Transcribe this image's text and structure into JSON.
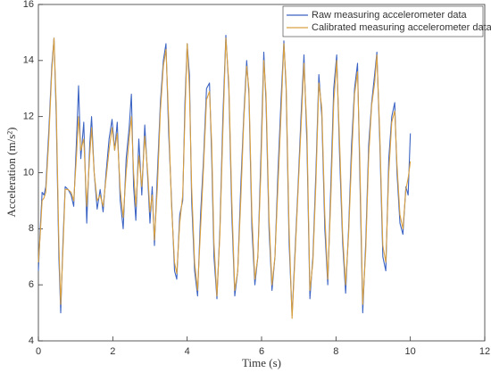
{
  "chart_data": {
    "type": "line",
    "xlabel": "Time (s)",
    "ylabel": "Acceleration (m/s²)",
    "xlim": [
      0,
      12
    ],
    "xticks": [
      0,
      2,
      4,
      6,
      8,
      10,
      12
    ],
    "ylim": [
      4,
      16
    ],
    "yticks": [
      4,
      6,
      8,
      10,
      12,
      14,
      16
    ],
    "legend": "top-right",
    "x": [
      0.0,
      0.05,
      0.1,
      0.15,
      0.2,
      0.28,
      0.36,
      0.42,
      0.48,
      0.55,
      0.6,
      0.66,
      0.72,
      0.8,
      0.88,
      0.95,
      1.02,
      1.08,
      1.14,
      1.22,
      1.3,
      1.38,
      1.43,
      1.5,
      1.58,
      1.66,
      1.74,
      1.82,
      1.9,
      1.98,
      2.05,
      2.12,
      2.2,
      2.28,
      2.36,
      2.44,
      2.5,
      2.56,
      2.62,
      2.7,
      2.78,
      2.86,
      2.94,
      3.0,
      3.06,
      3.12,
      3.2,
      3.28,
      3.36,
      3.43,
      3.5,
      3.58,
      3.66,
      3.72,
      3.8,
      3.88,
      3.94,
      4.0,
      4.06,
      4.12,
      4.2,
      4.28,
      4.36,
      4.44,
      4.52,
      4.6,
      4.66,
      4.72,
      4.8,
      4.88,
      4.96,
      5.04,
      5.12,
      5.2,
      5.28,
      5.36,
      5.44,
      5.52,
      5.6,
      5.66,
      5.74,
      5.82,
      5.9,
      5.98,
      6.06,
      6.12,
      6.2,
      6.28,
      6.36,
      6.44,
      6.52,
      6.6,
      6.66,
      6.74,
      6.82,
      6.9,
      6.98,
      7.06,
      7.14,
      7.22,
      7.3,
      7.38,
      7.46,
      7.54,
      7.62,
      7.7,
      7.78,
      7.86,
      7.94,
      8.02,
      8.1,
      8.18,
      8.26,
      8.34,
      8.42,
      8.5,
      8.58,
      8.64,
      8.72,
      8.8,
      8.88,
      8.96,
      9.04,
      9.1,
      9.18,
      9.26,
      9.34,
      9.42,
      9.5,
      9.58,
      9.64,
      9.72,
      9.8,
      9.88,
      9.94,
      10.0
    ],
    "series": [
      {
        "name": "Raw measuring accelerometer data",
        "color": "#3c64c4",
        "values": [
          6.5,
          8.0,
          9.3,
          9.2,
          9.5,
          11.5,
          13.8,
          14.8,
          12.0,
          7.0,
          5.0,
          7.5,
          9.5,
          9.4,
          9.2,
          8.8,
          11.0,
          13.1,
          10.5,
          11.8,
          8.2,
          11.0,
          12.0,
          10.0,
          8.7,
          9.4,
          8.6,
          10.0,
          11.2,
          11.9,
          10.8,
          11.8,
          9.0,
          8.0,
          10.5,
          11.6,
          12.8,
          9.5,
          8.3,
          11.2,
          9.2,
          11.7,
          9.8,
          8.2,
          9.5,
          7.4,
          10.0,
          12.5,
          14.0,
          14.6,
          11.5,
          9.0,
          6.5,
          6.2,
          8.5,
          9.0,
          12.5,
          14.6,
          13.5,
          9.0,
          6.5,
          5.6,
          8.5,
          10.5,
          13.0,
          13.2,
          10.5,
          7.0,
          5.5,
          8.0,
          12.0,
          14.9,
          13.0,
          8.5,
          5.6,
          6.5,
          9.5,
          12.0,
          14.0,
          12.8,
          8.0,
          6.0,
          7.0,
          10.5,
          14.3,
          12.5,
          8.0,
          5.8,
          7.0,
          10.0,
          12.5,
          14.7,
          13.0,
          7.5,
          4.9,
          7.2,
          9.5,
          12.0,
          14.2,
          11.0,
          5.5,
          7.0,
          10.0,
          13.5,
          12.0,
          8.0,
          6.0,
          9.5,
          13.0,
          14.2,
          10.5,
          7.5,
          5.7,
          8.0,
          11.0,
          13.0,
          13.9,
          10.0,
          5.0,
          7.5,
          11.0,
          12.5,
          13.5,
          14.3,
          11.0,
          7.0,
          6.5,
          10.5,
          12.0,
          12.5,
          10.0,
          8.2,
          7.8,
          9.5,
          9.2,
          11.4
        ]
      },
      {
        "name": "Calibrated measuring accelerometer data",
        "color": "#d9a040",
        "values": [
          6.8,
          7.8,
          9.0,
          9.1,
          9.3,
          11.2,
          13.6,
          14.8,
          12.4,
          7.5,
          5.3,
          7.2,
          9.4,
          9.4,
          9.3,
          9.0,
          10.5,
          12.0,
          10.8,
          11.2,
          8.8,
          10.6,
          11.6,
          10.0,
          9.0,
          9.2,
          8.8,
          9.8,
          10.8,
          11.6,
          10.8,
          11.4,
          9.4,
          8.4,
          10.0,
          11.2,
          12.0,
          10.0,
          8.8,
          10.6,
          9.5,
          11.3,
          10.0,
          8.6,
          9.2,
          7.6,
          9.5,
          12.2,
          13.8,
          14.4,
          12.0,
          8.8,
          6.8,
          6.4,
          8.2,
          9.2,
          12.0,
          14.6,
          13.0,
          9.5,
          6.8,
          5.8,
          8.0,
          10.2,
          12.6,
          12.9,
          11.0,
          7.5,
          5.6,
          7.8,
          11.5,
          14.8,
          13.2,
          9.0,
          5.8,
          6.5,
          9.0,
          11.8,
          13.8,
          13.0,
          8.5,
          6.2,
          7.0,
          10.0,
          14.0,
          12.8,
          8.4,
          6.0,
          7.0,
          9.5,
          12.0,
          14.6,
          13.2,
          8.0,
          4.8,
          7.0,
          9.3,
          11.6,
          13.9,
          11.5,
          5.8,
          6.8,
          9.6,
          13.2,
          12.3,
          8.5,
          6.2,
          9.0,
          12.5,
          14.0,
          11.0,
          7.8,
          6.0,
          7.8,
          10.5,
          12.8,
          13.6,
          10.5,
          5.3,
          7.2,
          10.6,
          12.4,
          13.2,
          14.2,
          11.3,
          7.4,
          6.8,
          10.0,
          11.8,
          12.2,
          10.3,
          8.5,
          8.0,
          9.4,
          9.8,
          10.4
        ]
      }
    ]
  }
}
